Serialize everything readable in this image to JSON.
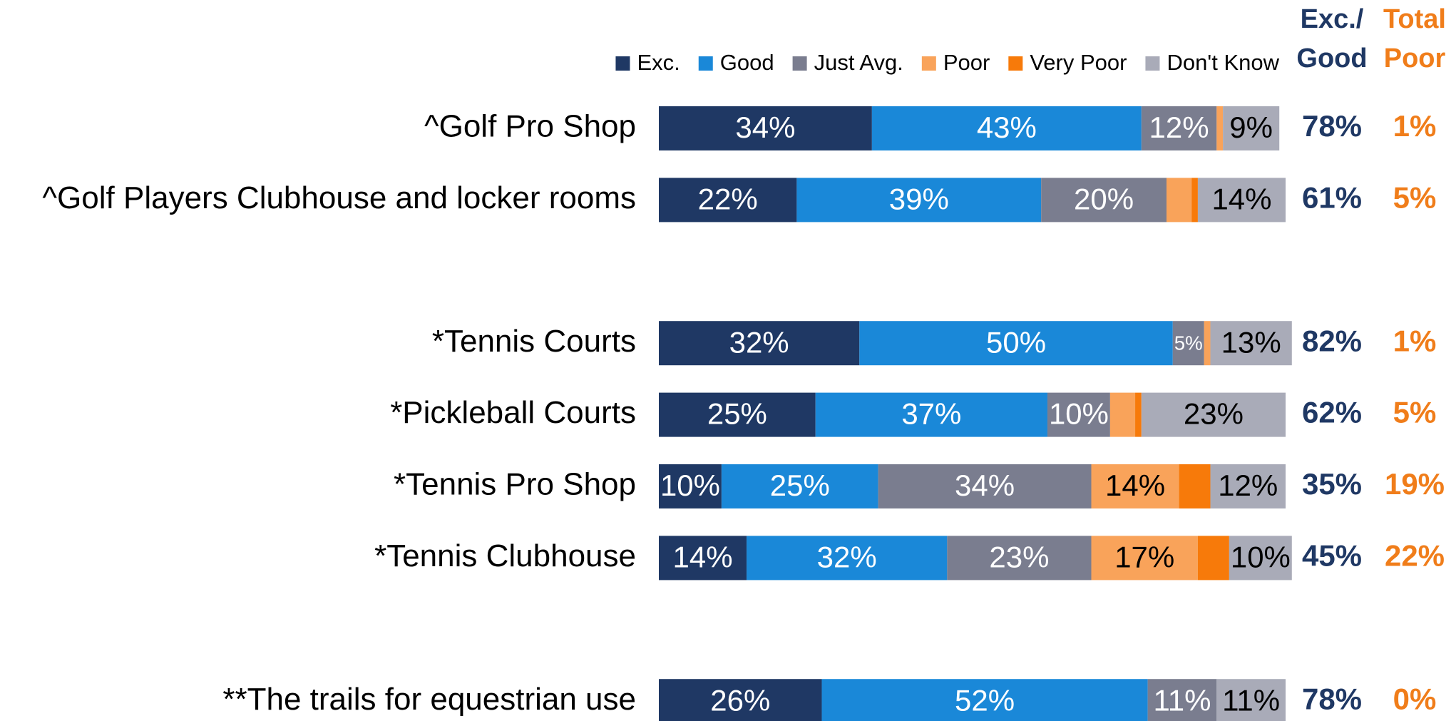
{
  "chart_data": {
    "type": "stacked_barh",
    "categories": [
      "^Golf Pro Shop",
      "^Golf Players Clubhouse and locker rooms",
      null,
      "*Tennis Courts",
      "*Pickleball Courts",
      "*Tennis Pro Shop",
      "*Tennis Clubhouse",
      null,
      "**The trails for equestrian use"
    ],
    "xlim": [
      0,
      100
    ],
    "legend": "top",
    "series": [
      {
        "name": "Exc.",
        "color": "#1f3864",
        "label_color": "#ffffff",
        "values": [
          34,
          22,
          null,
          32,
          25,
          10,
          14,
          null,
          26
        ],
        "value_labels": [
          "34%",
          "22%",
          null,
          "32%",
          "25%",
          "10%",
          "14%",
          null,
          "26%"
        ]
      },
      {
        "name": "Good",
        "color": "#1a88d8",
        "label_color": "#ffffff",
        "values": [
          43,
          39,
          null,
          50,
          37,
          25,
          32,
          null,
          52
        ],
        "value_labels": [
          "43%",
          "39%",
          null,
          "50%",
          "37%",
          "25%",
          "32%",
          null,
          "52%"
        ]
      },
      {
        "name": "Just Avg.",
        "color": "#7a7d8f",
        "label_color": "#ffffff",
        "values": [
          12,
          20,
          null,
          5,
          10,
          34,
          23,
          null,
          11
        ],
        "value_labels": [
          "12%",
          "20%",
          null,
          "5%",
          "10%",
          "34%",
          "23%",
          null,
          "11%"
        ]
      },
      {
        "name": "Poor",
        "color": "#f9a35a",
        "label_color": "#000000",
        "values": [
          1,
          4,
          null,
          1,
          4,
          14,
          17,
          null,
          0
        ],
        "value_labels": [
          null,
          null,
          null,
          null,
          null,
          "14%",
          "17%",
          null,
          null
        ]
      },
      {
        "name": "Very Poor",
        "color": "#f77a0a",
        "label_color": "#000000",
        "values": [
          0,
          1,
          null,
          0,
          1,
          5,
          5,
          null,
          0
        ],
        "value_labels": [
          null,
          null,
          null,
          null,
          null,
          null,
          null,
          null,
          null
        ]
      },
      {
        "name": "Don't Know",
        "color": "#a9abb8",
        "label_color": "#000000",
        "values": [
          9,
          14,
          null,
          13,
          23,
          12,
          10,
          null,
          11
        ],
        "value_labels": [
          "9%",
          "14%",
          null,
          "13%",
          "23%",
          "12%",
          "10%",
          null,
          "11%"
        ]
      }
    ],
    "summary_columns": [
      {
        "header": [
          "Exc./",
          "Good"
        ],
        "color": "#1f3864",
        "values": [
          78,
          61,
          null,
          82,
          62,
          35,
          45,
          null,
          78
        ],
        "value_labels": [
          "78%",
          "61%",
          null,
          "82%",
          "62%",
          "35%",
          "45%",
          null,
          "78%"
        ]
      },
      {
        "header": [
          "Total",
          "Poor"
        ],
        "color": "#f07d1a",
        "values": [
          1,
          5,
          null,
          1,
          5,
          19,
          22,
          null,
          0
        ],
        "value_labels": [
          "1%",
          "5%",
          null,
          "1%",
          "5%",
          "19%",
          "22%",
          null,
          "0%"
        ]
      }
    ]
  }
}
